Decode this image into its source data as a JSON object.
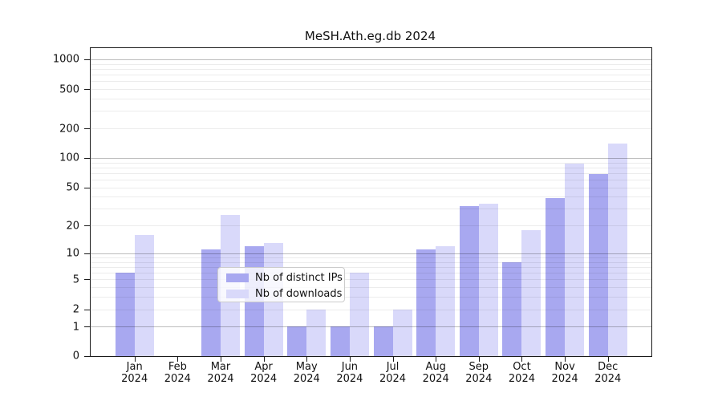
{
  "title": "MeSH.Ath.eg.db 2024",
  "chart_data": {
    "type": "bar",
    "title": "MeSH.Ath.eg.db 2024",
    "categories": [
      "Jan 2024",
      "Feb 2024",
      "Mar 2024",
      "Apr 2024",
      "May 2024",
      "Jun 2024",
      "Jul 2024",
      "Aug 2024",
      "Sep 2024",
      "Oct 2024",
      "Nov 2024",
      "Dec 2024"
    ],
    "series": [
      {
        "name": "Nb of distinct IPs",
        "color": "#a8a8f0",
        "values": [
          6,
          0,
          11,
          12,
          1,
          1,
          1,
          11,
          32,
          8,
          39,
          68
        ]
      },
      {
        "name": "Nb of downloads",
        "color": "#d9d9fa",
        "values": [
          16,
          0,
          26,
          13,
          2,
          6,
          2,
          12,
          34,
          18,
          88,
          140
        ]
      }
    ],
    "xlabel": "",
    "ylabel": "",
    "y_scale": "log10(value+1)",
    "ylim": [
      0,
      1290
    ],
    "y_tick_labels": [
      "0",
      "1",
      "2",
      "5",
      "10",
      "20",
      "50",
      "100",
      "200",
      "500",
      "1000"
    ],
    "y_tick_values": [
      0,
      1,
      2,
      5,
      10,
      20,
      50,
      100,
      200,
      500,
      1000
    ],
    "y_major_gridlines": [
      1,
      10,
      100,
      1000
    ],
    "y_minor_gridlines": [
      2,
      3,
      4,
      5,
      6,
      7,
      8,
      9,
      20,
      30,
      40,
      50,
      60,
      70,
      80,
      90,
      200,
      300,
      400,
      500,
      600,
      700,
      800,
      900
    ],
    "grid": true,
    "legend_position": "lower center",
    "colors": {
      "bar_ips": "#a8a8f0",
      "bar_downloads": "#d9d9fa",
      "spine": "#1a1a1a",
      "major_grid": "#bdbdbd",
      "minor_grid": "#ececec"
    }
  }
}
